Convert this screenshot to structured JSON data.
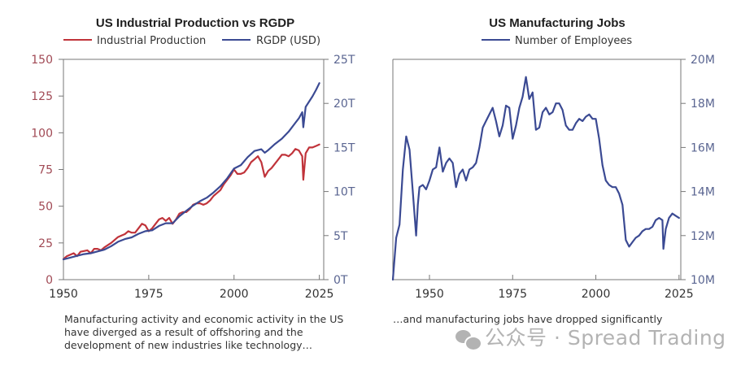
{
  "colors": {
    "red": "#c0333a",
    "blue": "#3b4a93",
    "left_axis_text": "#a14a55",
    "right_axis_text": "#5a6591",
    "axis_line": "#777777",
    "text": "#333333"
  },
  "chart_data": [
    {
      "type": "line",
      "title": "US Industrial Production vs RGDP",
      "legend_position": "top",
      "xlim": [
        1950,
        2027
      ],
      "xticks": [
        1950,
        1975,
        2000,
        2025
      ],
      "xtick_labels": [
        "1950",
        "1975",
        "2000",
        "2025"
      ],
      "y_left": {
        "ylim": [
          0,
          150
        ],
        "ticks": [
          0,
          25,
          50,
          75,
          100,
          125,
          150
        ],
        "tick_labels": [
          "0",
          "25",
          "50",
          "75",
          "100",
          "125",
          "150"
        ]
      },
      "y_right": {
        "ylim": [
          0,
          25
        ],
        "ticks": [
          0,
          5,
          10,
          15,
          20,
          25
        ],
        "tick_labels": [
          "0T",
          "5T",
          "10T",
          "15T",
          "20T",
          "25T"
        ]
      },
      "series": [
        {
          "name": "Industrial Production",
          "axis": "left",
          "color": "#c0333a",
          "x": [
            1950,
            1951,
            1953,
            1954,
            1955,
            1957,
            1958,
            1959,
            1960,
            1961,
            1962,
            1964,
            1966,
            1967,
            1968,
            1969,
            1970,
            1971,
            1972,
            1973,
            1974,
            1975,
            1976,
            1977,
            1978,
            1979,
            1980,
            1981,
            1982,
            1983,
            1984,
            1985,
            1986,
            1987,
            1988,
            1989,
            1990,
            1991,
            1992,
            1993,
            1994,
            1995,
            1996,
            1997,
            1998,
            1999,
            2000,
            2001,
            2002,
            2003,
            2004,
            2005,
            2006,
            2007,
            2008,
            2009,
            2010,
            2011,
            2012,
            2013,
            2014,
            2015,
            2016,
            2017,
            2018,
            2019,
            2020,
            2020.3,
            2021,
            2022,
            2023,
            2024,
            2025
          ],
          "values": [
            14,
            16,
            18,
            16,
            19,
            20,
            18,
            21,
            21,
            20,
            22,
            25,
            29,
            30,
            31,
            33,
            32,
            32,
            35,
            38,
            37,
            33,
            35,
            38,
            41,
            42,
            40,
            42,
            38,
            41,
            45,
            46,
            46,
            48,
            51,
            52,
            52,
            51,
            52,
            54,
            57,
            59,
            61,
            65,
            68,
            71,
            75,
            72,
            72,
            73,
            76,
            80,
            82,
            84,
            80,
            70,
            74,
            76,
            79,
            82,
            85,
            85,
            84,
            86,
            89,
            88,
            84,
            68,
            86,
            90,
            90,
            91,
            92
          ]
        },
        {
          "name": "RGDP (USD)",
          "axis": "right",
          "color": "#3b4a93",
          "x": [
            1950,
            1952,
            1954,
            1956,
            1958,
            1960,
            1962,
            1964,
            1966,
            1968,
            1970,
            1972,
            1974,
            1976,
            1978,
            1980,
            1982,
            1984,
            1986,
            1988,
            1990,
            1992,
            1994,
            1996,
            1998,
            2000,
            2002,
            2004,
            2006,
            2008,
            2009,
            2010,
            2012,
            2014,
            2016,
            2018,
            2019,
            2020,
            2020.3,
            2021,
            2022,
            2023,
            2024,
            2025
          ],
          "values": [
            2.3,
            2.5,
            2.7,
            2.9,
            3.0,
            3.2,
            3.4,
            3.8,
            4.3,
            4.6,
            4.8,
            5.2,
            5.5,
            5.6,
            6.1,
            6.4,
            6.4,
            7.2,
            7.8,
            8.4,
            8.9,
            9.3,
            9.9,
            10.6,
            11.5,
            12.6,
            13.0,
            13.9,
            14.6,
            14.8,
            14.4,
            14.7,
            15.4,
            16.0,
            16.8,
            17.8,
            18.3,
            19.0,
            17.3,
            19.6,
            20.2,
            20.8,
            21.5,
            22.3
          ]
        }
      ],
      "caption": "Manufacturing activity and economic activity in the US have diverged as a result of offshoring and the development of new industries like technology…"
    },
    {
      "type": "line",
      "title": "US Manufacturing Jobs",
      "legend_position": "top",
      "xlim": [
        1939,
        2027
      ],
      "xticks": [
        1950,
        1975,
        2000,
        2025
      ],
      "xtick_labels": [
        "1950",
        "1975",
        "2000",
        "2025"
      ],
      "y_right": {
        "ylim": [
          10,
          20
        ],
        "ticks": [
          10,
          12,
          14,
          16,
          18,
          20
        ],
        "tick_labels": [
          "10M",
          "12M",
          "14M",
          "16M",
          "18M",
          "20M"
        ]
      },
      "series": [
        {
          "name": "Number of Employees",
          "axis": "right",
          "color": "#3b4a93",
          "x": [
            1939,
            1940,
            1941,
            1942,
            1943,
            1944,
            1945,
            1946,
            1946.5,
            1947,
            1948,
            1949,
            1950,
            1951,
            1952,
            1953,
            1954,
            1955,
            1956,
            1957,
            1958,
            1959,
            1960,
            1961,
            1962,
            1963,
            1964,
            1965,
            1966,
            1967,
            1968,
            1969,
            1970,
            1971,
            1972,
            1973,
            1974,
            1975,
            1976,
            1977,
            1978,
            1979,
            1980,
            1981,
            1982,
            1983,
            1984,
            1985,
            1986,
            1987,
            1988,
            1989,
            1990,
            1991,
            1992,
            1993,
            1994,
            1995,
            1996,
            1997,
            1998,
            1999,
            2000,
            2001,
            2002,
            2003,
            2004,
            2005,
            2006,
            2007,
            2008,
            2009,
            2010,
            2011,
            2012,
            2013,
            2014,
            2015,
            2016,
            2017,
            2018,
            2019,
            2020,
            2020.3,
            2021,
            2022,
            2023,
            2024,
            2025
          ],
          "values": [
            10,
            11.9,
            12.5,
            15.0,
            16.5,
            15.9,
            14.0,
            12.0,
            13.4,
            14.2,
            14.3,
            14.1,
            14.5,
            15.0,
            15.1,
            16.0,
            14.9,
            15.3,
            15.5,
            15.3,
            14.2,
            14.8,
            15.0,
            14.5,
            15.0,
            15.1,
            15.3,
            16.0,
            16.9,
            17.2,
            17.5,
            17.8,
            17.2,
            16.5,
            17.0,
            17.9,
            17.8,
            16.4,
            17.0,
            17.8,
            18.3,
            19.2,
            18.2,
            18.5,
            16.8,
            16.9,
            17.6,
            17.8,
            17.5,
            17.6,
            18.0,
            18.0,
            17.7,
            17.0,
            16.8,
            16.8,
            17.1,
            17.3,
            17.2,
            17.4,
            17.5,
            17.3,
            17.3,
            16.4,
            15.2,
            14.5,
            14.3,
            14.2,
            14.2,
            13.9,
            13.4,
            11.8,
            11.5,
            11.7,
            11.9,
            12.0,
            12.2,
            12.3,
            12.3,
            12.4,
            12.7,
            12.8,
            12.7,
            11.4,
            12.3,
            12.8,
            13.0,
            12.9,
            12.8
          ]
        }
      ],
      "caption": "…and manufacturing jobs have dropped significantly"
    }
  ],
  "watermark": {
    "text": "公众号 · Spread Trading",
    "icon": "wechat-icon"
  }
}
